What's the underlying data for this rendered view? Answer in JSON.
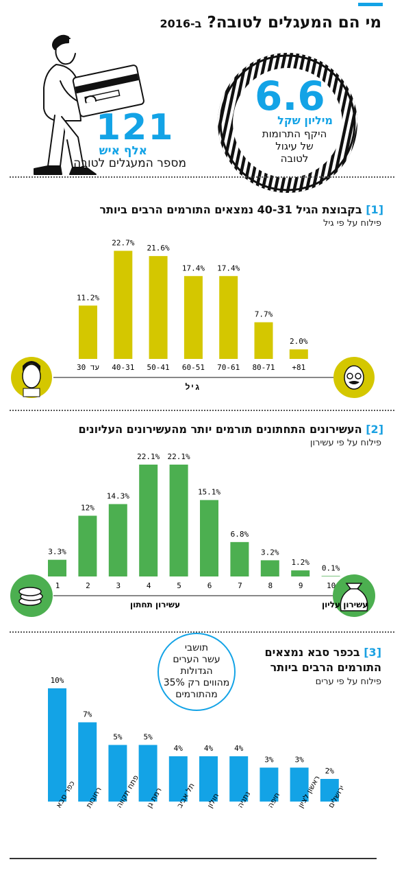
{
  "header": {
    "title_main": "מי הם המעגלים לטובה?",
    "title_suffix": "ב-2016"
  },
  "stats": {
    "donations_value": "6.6",
    "donations_unit": "מיליון שקל",
    "donations_caption_line1": "היקף התרומות",
    "donations_caption_line2": "של עיגול",
    "donations_caption_line3": "לטובה",
    "people_value": "121",
    "people_unit": "אלף איש",
    "people_caption": "מספר המעגלים לטובה"
  },
  "section1": {
    "number": "[1]",
    "title": "בקבוצת הגיל 40-31 נמצאים התורמים הרבים ביותר",
    "subtitle": "פילוח על פי גיל",
    "axis_label": "גיל"
  },
  "section2": {
    "number": "[2]",
    "title": "העשירונים התחתונים תורמים יותר מהעשירונים העליונים",
    "subtitle": "פילוח על פי עשירון",
    "left_label": "עשירון תחתון",
    "right_label": "עשירון עליון"
  },
  "section3": {
    "number": "[3]",
    "title_line1": "בכפר סבא נמצאים",
    "title_line2": "התורמים הרבים ביותר",
    "subtitle": "פילוח על פי ערים",
    "bubble_line1": "תושבי",
    "bubble_line2": "עשר הערים",
    "bubble_line3": "הגדולות",
    "bubble_line4": "מהווים רק 35%",
    "bubble_line5": "מהתורמים"
  },
  "colors": {
    "accent_blue": "#13a3e6",
    "age_bar": "#d4c700",
    "decile_bar": "#4caf50",
    "city_bar": "#13a3e6"
  },
  "chart_data": [
    {
      "type": "bar",
      "categories": [
        "עד 30",
        "40-31",
        "50-41",
        "60-51",
        "70-61",
        "80-71",
        "81+"
      ],
      "values": [
        11.2,
        22.7,
        21.6,
        17.4,
        17.4,
        7.7,
        2.0
      ],
      "value_labels": [
        "11.2%",
        "22.7%",
        "21.6%",
        "17.4%",
        "17.4%",
        "7.7%",
        "2.0%"
      ],
      "xlabel": "גיל",
      "ylim": [
        0,
        25
      ]
    },
    {
      "type": "bar",
      "categories": [
        "1",
        "2",
        "3",
        "4",
        "5",
        "6",
        "7",
        "8",
        "9",
        "10"
      ],
      "values": [
        3.3,
        12,
        14.3,
        22.1,
        22.1,
        15.1,
        6.8,
        3.2,
        1.2,
        0.1
      ],
      "value_labels": [
        "3.3%",
        "12%",
        "14.3%",
        "22.1%",
        "22.1%",
        "15.1%",
        "6.8%",
        "3.2%",
        "1.2%",
        "0.1%"
      ],
      "ylim": [
        0,
        25
      ]
    },
    {
      "type": "bar",
      "categories": [
        "כפר סבא",
        "רחובות",
        "פתח תקווה",
        "רמת גן",
        "תל אביב",
        "חולון",
        "נתניה",
        "חיפה",
        "ראשון לציון",
        "ירושלים"
      ],
      "values": [
        10,
        7,
        5,
        5,
        4,
        4,
        4,
        3,
        3,
        2
      ],
      "value_labels": [
        "10%",
        "7%",
        "5%",
        "5%",
        "4%",
        "4%",
        "4%",
        "3%",
        "3%",
        "2%"
      ],
      "ylim": [
        0,
        10.5
      ]
    }
  ]
}
